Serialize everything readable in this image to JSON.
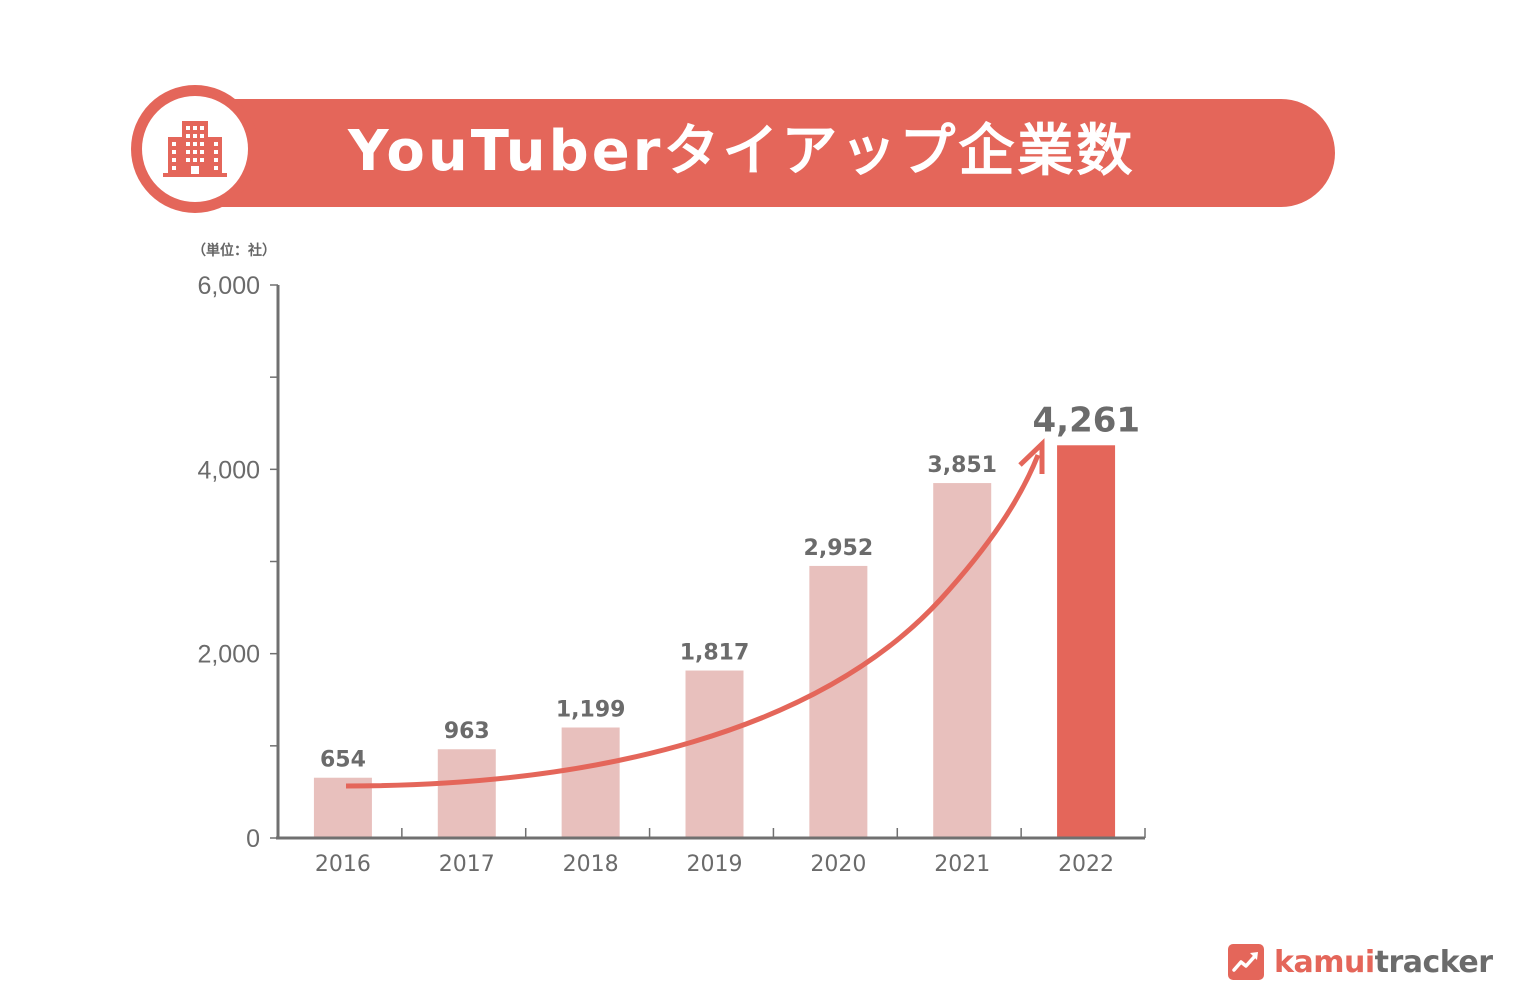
{
  "header": {
    "title": "YouTuberタイアップ企業数",
    "icon": "building-icon"
  },
  "chart": {
    "unit_label": "（単位：社）"
  },
  "colors": {
    "accent": "#e4665a",
    "bar_muted": "#e8c0bd",
    "text_gray": "#6b6b6b",
    "axis_gray": "#707070"
  },
  "footer": {
    "logo_part1": "kamui",
    "logo_part2": "tracker",
    "logo_icon": "trend-up-icon"
  },
  "chart_data": {
    "type": "bar",
    "title": "YouTuberタイアップ企業数",
    "xlabel": "",
    "ylabel": "（単位：社）",
    "categories": [
      "2016",
      "2017",
      "2018",
      "2019",
      "2020",
      "2021",
      "2022"
    ],
    "values": [
      654,
      963,
      1199,
      1817,
      2952,
      3851,
      4261
    ],
    "value_labels": [
      "654",
      "963",
      "1,199",
      "1,817",
      "2,952",
      "3,851",
      "4,261"
    ],
    "highlight_index": 6,
    "ylim": [
      0,
      6000
    ],
    "yticks": [
      0,
      2000,
      4000,
      6000
    ],
    "ytick_labels": [
      "0",
      "2,000",
      "4,000",
      "6,000"
    ],
    "minor_yticks": [
      1000,
      3000,
      5000
    ],
    "grid": false,
    "legend": null,
    "annotations": [
      "Upward trend arrow curving from 2016 bar to 2022 bar"
    ]
  }
}
